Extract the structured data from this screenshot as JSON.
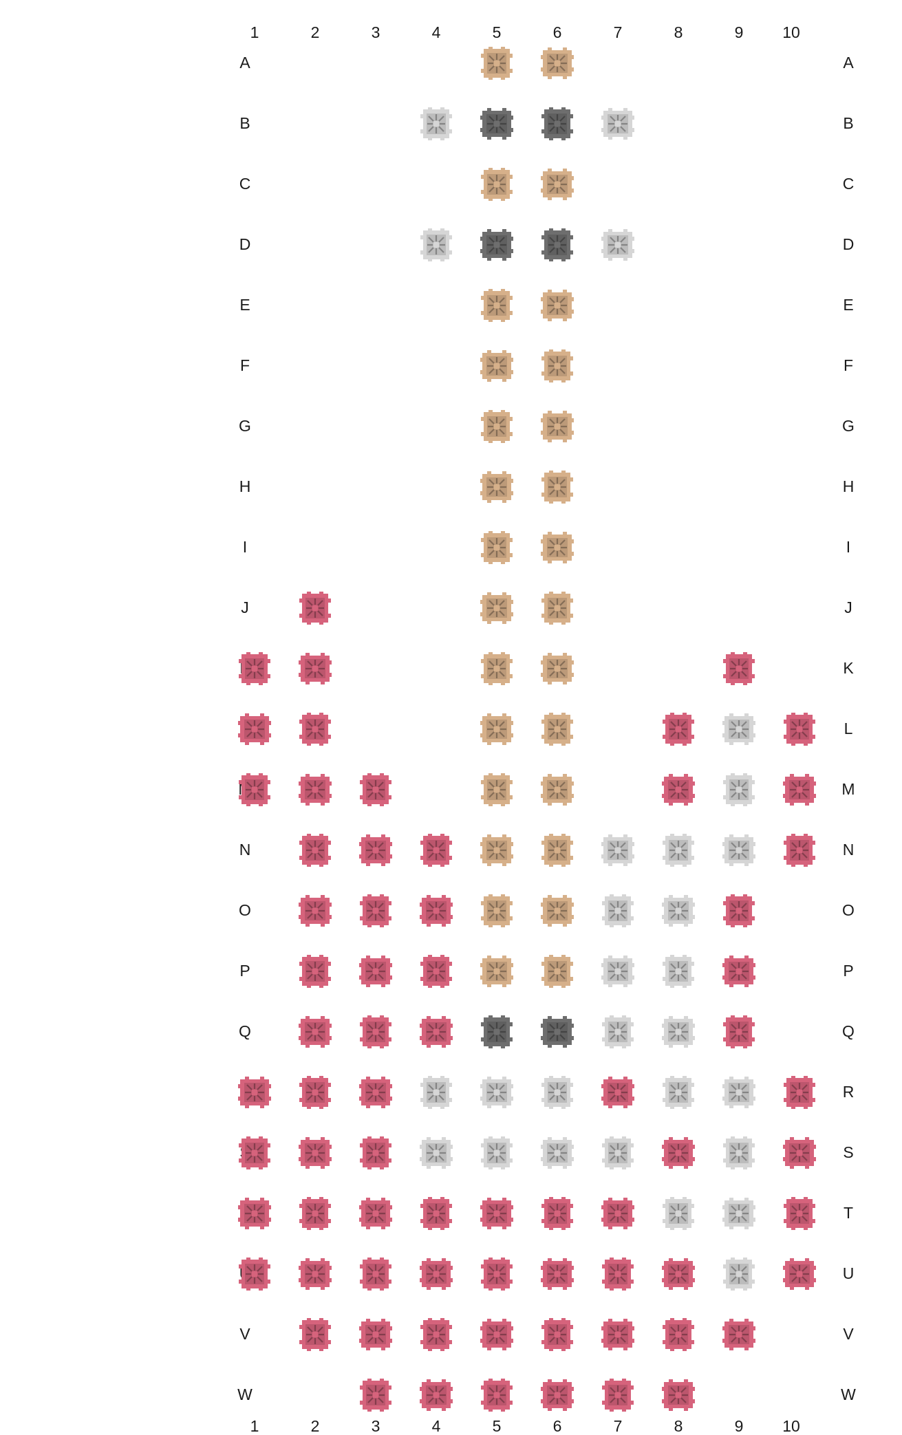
{
  "grid": {
    "columns": [
      "1",
      "2",
      "3",
      "4",
      "5",
      "6",
      "7",
      "8",
      "9",
      "10"
    ],
    "rows": [
      "A",
      "B",
      "C",
      "D",
      "E",
      "F",
      "G",
      "H",
      "I",
      "J",
      "K",
      "L",
      "M",
      "N",
      "O",
      "P",
      "Q",
      "R",
      "S",
      "T",
      "U",
      "V",
      "W"
    ],
    "legend_colors": {
      "T": "#d6b08a",
      "G": "#6e6e6e",
      "L": "#d6d6d6",
      "P": "#d6637c"
    },
    "cells": [
      "....TT....",
      "...LGGL...",
      "....TT....",
      "...LGGL...",
      "....TT....",
      "....TT....",
      "....TT....",
      "....TT....",
      "....TT....",
      ".P..TT....",
      "PP..TT..P.",
      "PP..TT.PLP",
      "PPP.TT.PLP",
      ".PPPTTLLLP",
      ".PPPTTLLP.",
      ".PPPTTLLP.",
      ".PPPGGLLP.",
      "PPPLLLPLLP",
      "PPPLLLLPLP",
      "PPPPPPPLLP",
      "PPPPPPPPLP",
      ".PPPPPPPP.",
      "..PPPPPP.."
    ]
  }
}
